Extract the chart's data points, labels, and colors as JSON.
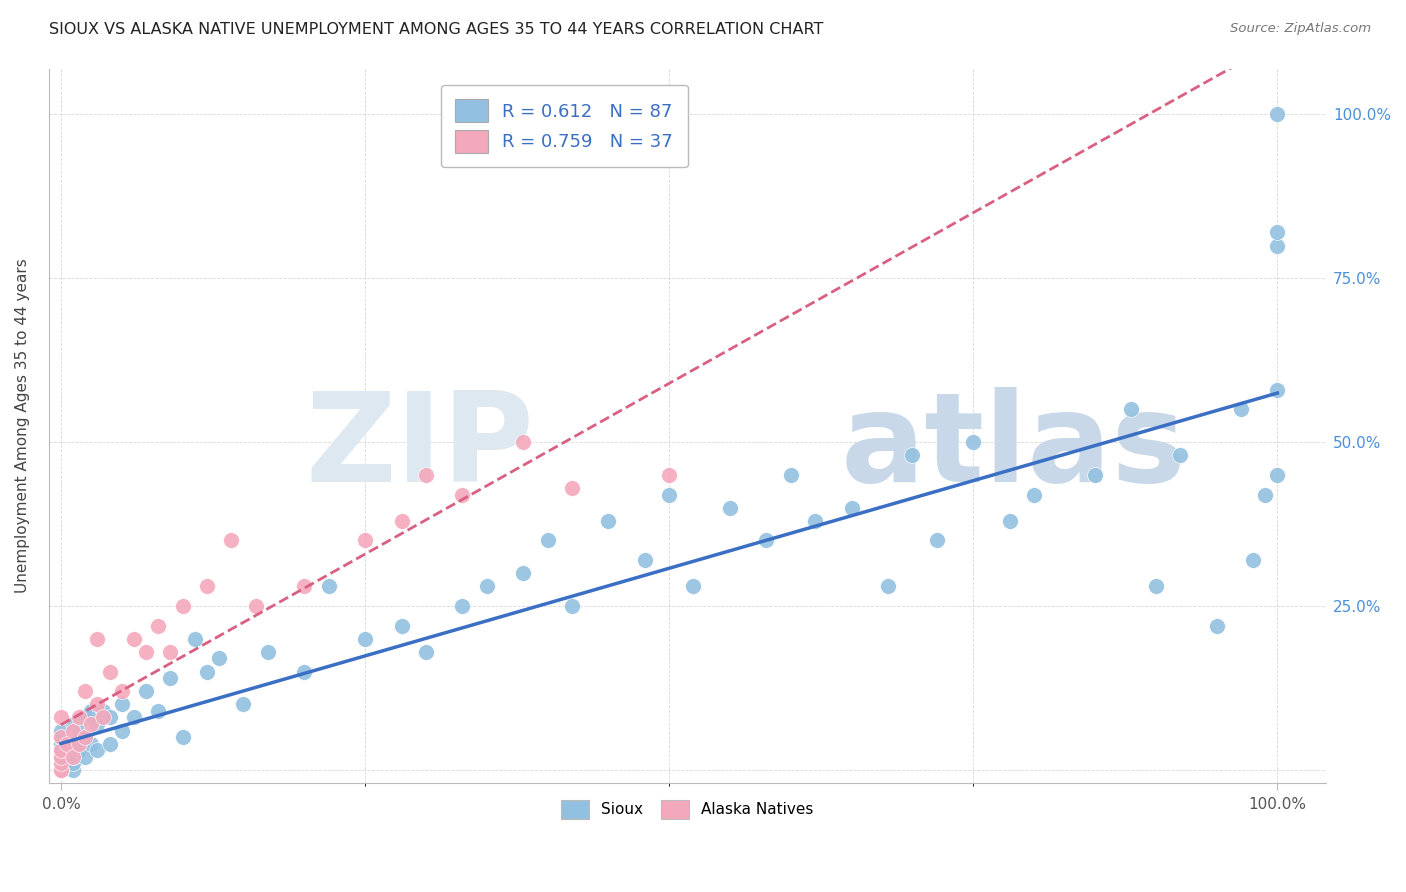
{
  "title": "SIOUX VS ALASKA NATIVE UNEMPLOYMENT AMONG AGES 35 TO 44 YEARS CORRELATION CHART",
  "source": "Source: ZipAtlas.com",
  "ylabel": "Unemployment Among Ages 35 to 44 years",
  "sioux_R": 0.612,
  "sioux_N": 87,
  "alaska_R": 0.759,
  "alaska_N": 37,
  "sioux_color": "#92c0e0",
  "alaska_color": "#f4a8bc",
  "sioux_line_color": "#3a6fc4",
  "alaska_line_color": "#d96080",
  "background_color": "#ffffff",
  "grid_color": "#d8d8d8",
  "watermark_zip": "ZIP",
  "watermark_atlas": "atlas",
  "watermark_color_zip": "#dde8f0",
  "watermark_color_atlas": "#c8d8e8",
  "xtick_labels": [
    "0.0%",
    "100.0%"
  ],
  "xtick_vals": [
    0.0,
    1.0
  ],
  "ytick_labels": [
    "25.0%",
    "50.0%",
    "75.0%",
    "100.0%"
  ],
  "ytick_vals": [
    0.25,
    0.5,
    0.75,
    1.0
  ],
  "sioux_x": [
    0.0,
    0.0,
    0.0,
    0.0,
    0.0,
    0.0,
    0.0,
    0.0,
    0.0,
    0.0,
    0.0,
    0.0,
    0.0,
    0.0,
    0.0,
    0.0,
    0.0,
    0.0,
    0.0,
    0.0,
    0.01,
    0.01,
    0.01,
    0.01,
    0.01,
    0.015,
    0.015,
    0.02,
    0.02,
    0.02,
    0.025,
    0.025,
    0.03,
    0.03,
    0.035,
    0.04,
    0.04,
    0.05,
    0.05,
    0.06,
    0.07,
    0.08,
    0.09,
    0.1,
    0.11,
    0.12,
    0.13,
    0.15,
    0.17,
    0.2,
    0.22,
    0.25,
    0.28,
    0.3,
    0.33,
    0.35,
    0.38,
    0.4,
    0.42,
    0.45,
    0.48,
    0.5,
    0.52,
    0.55,
    0.58,
    0.6,
    0.62,
    0.65,
    0.68,
    0.7,
    0.72,
    0.75,
    0.78,
    0.8,
    0.85,
    0.88,
    0.9,
    0.92,
    0.95,
    0.97,
    0.98,
    0.99,
    1.0,
    1.0,
    1.0,
    1.0,
    1.0
  ],
  "sioux_y": [
    0.0,
    0.0,
    0.0,
    0.0,
    0.0,
    0.0,
    0.0,
    0.0,
    0.0,
    0.0,
    0.0,
    0.0,
    0.01,
    0.01,
    0.02,
    0.02,
    0.03,
    0.04,
    0.05,
    0.06,
    0.0,
    0.01,
    0.02,
    0.04,
    0.07,
    0.03,
    0.06,
    0.02,
    0.05,
    0.08,
    0.04,
    0.09,
    0.03,
    0.07,
    0.09,
    0.04,
    0.08,
    0.06,
    0.1,
    0.08,
    0.12,
    0.09,
    0.14,
    0.05,
    0.2,
    0.15,
    0.17,
    0.1,
    0.18,
    0.15,
    0.28,
    0.2,
    0.22,
    0.18,
    0.25,
    0.28,
    0.3,
    0.35,
    0.25,
    0.38,
    0.32,
    0.42,
    0.28,
    0.4,
    0.35,
    0.45,
    0.38,
    0.4,
    0.28,
    0.48,
    0.35,
    0.5,
    0.38,
    0.42,
    0.45,
    0.55,
    0.28,
    0.48,
    0.22,
    0.55,
    0.32,
    0.42,
    0.58,
    0.45,
    0.8,
    0.82,
    1.0
  ],
  "alaska_x": [
    0.0,
    0.0,
    0.0,
    0.0,
    0.0,
    0.0,
    0.0,
    0.0,
    0.005,
    0.01,
    0.01,
    0.015,
    0.015,
    0.02,
    0.02,
    0.025,
    0.03,
    0.03,
    0.035,
    0.04,
    0.05,
    0.06,
    0.07,
    0.08,
    0.09,
    0.1,
    0.12,
    0.14,
    0.16,
    0.2,
    0.25,
    0.28,
    0.3,
    0.33,
    0.38,
    0.42,
    0.5
  ],
  "alaska_y": [
    0.0,
    0.0,
    0.0,
    0.01,
    0.02,
    0.03,
    0.05,
    0.08,
    0.04,
    0.02,
    0.06,
    0.04,
    0.08,
    0.05,
    0.12,
    0.07,
    0.1,
    0.2,
    0.08,
    0.15,
    0.12,
    0.2,
    0.18,
    0.22,
    0.18,
    0.25,
    0.28,
    0.35,
    0.25,
    0.28,
    0.35,
    0.38,
    0.45,
    0.42,
    0.5,
    0.43,
    0.45
  ]
}
